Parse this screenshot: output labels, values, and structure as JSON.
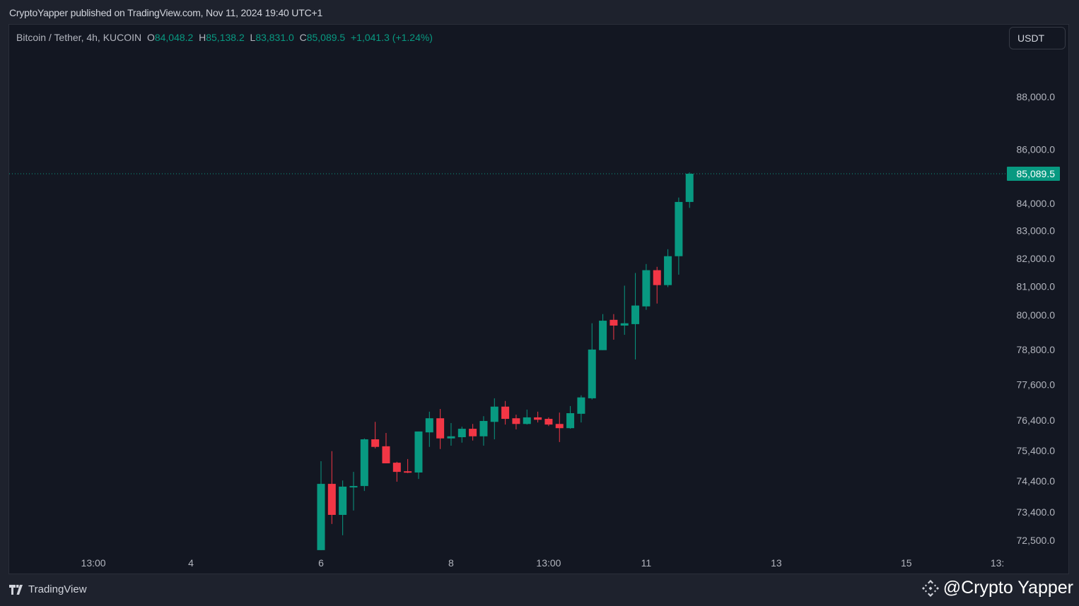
{
  "header": {
    "published": "CryptoYapper published on TradingView.com, Nov 11, 2024 19:40 UTC+1"
  },
  "legend": {
    "symbol": "Bitcoin / Tether, 4h, KUCOIN",
    "o_label": "O",
    "o": "84,048.2",
    "h_label": "H",
    "h": "85,138.2",
    "l_label": "L",
    "l": "83,831.0",
    "c_label": "C",
    "c": "85,089.5",
    "change": "+1,041.3 (+1.24%)"
  },
  "currency_button": "USDT",
  "footer": {
    "brand": "TradingView",
    "watermark": "@Crypto Yapper"
  },
  "colors": {
    "up": "#089981",
    "down": "#f23645",
    "background": "#131722",
    "axis_text": "#b2b5be"
  },
  "chart_data": {
    "type": "candlestick",
    "title": "Bitcoin / Tether, 4h, KUCOIN",
    "scale": "log",
    "ylim": [
      72000,
      89500
    ],
    "last_price": 85089.5,
    "last_price_label": "85,089.5",
    "y_ticks": [
      {
        "value": 88000,
        "label": "88,000.0"
      },
      {
        "value": 86000,
        "label": "86,000.0"
      },
      {
        "value": 84000,
        "label": "84,000.0"
      },
      {
        "value": 83000,
        "label": "83,000.0"
      },
      {
        "value": 82000,
        "label": "82,000.0"
      },
      {
        "value": 81000,
        "label": "81,000.0"
      },
      {
        "value": 80000,
        "label": "80,000.0"
      },
      {
        "value": 78800,
        "label": "78,800.0"
      },
      {
        "value": 77600,
        "label": "77,600.0"
      },
      {
        "value": 76400,
        "label": "76,400.0"
      },
      {
        "value": 75400,
        "label": "75,400.0"
      },
      {
        "value": 74400,
        "label": "74,400.0"
      },
      {
        "value": 73400,
        "label": "73,400.0"
      },
      {
        "value": 72500,
        "label": "72,500.0"
      }
    ],
    "x_ticks": [
      {
        "bar": -21,
        "label": "13:00"
      },
      {
        "bar": -12,
        "label": "4"
      },
      {
        "bar": 0,
        "label": "6"
      },
      {
        "bar": 12,
        "label": "8"
      },
      {
        "bar": 21,
        "label": "13:00"
      },
      {
        "bar": 30,
        "label": "11"
      },
      {
        "bar": 42,
        "label": "13"
      },
      {
        "bar": 54,
        "label": "15"
      },
      {
        "bar": 62.4,
        "label": "13:"
      }
    ],
    "candles": [
      [
        72190,
        75050,
        72190,
        74310
      ],
      [
        74310,
        75380,
        73020,
        73310
      ],
      [
        73310,
        74420,
        72660,
        74220
      ],
      [
        74200,
        74700,
        73450,
        74240
      ],
      [
        74240,
        75800,
        74080,
        75770
      ],
      [
        75770,
        76350,
        75470,
        75520
      ],
      [
        75540,
        75980,
        74980,
        74980
      ],
      [
        75000,
        75030,
        74380,
        74700
      ],
      [
        74720,
        75120,
        74660,
        74700
      ],
      [
        74680,
        76030,
        74470,
        76030
      ],
      [
        76000,
        76690,
        75520,
        76470
      ],
      [
        76470,
        76780,
        75450,
        75800
      ],
      [
        75800,
        76310,
        75560,
        75870
      ],
      [
        75840,
        76190,
        75660,
        76120
      ],
      [
        76120,
        76280,
        75730,
        75870
      ],
      [
        75870,
        76540,
        75560,
        76380
      ],
      [
        76350,
        77140,
        75770,
        76860
      ],
      [
        76860,
        77050,
        76260,
        76450
      ],
      [
        76470,
        76590,
        76100,
        76280
      ],
      [
        76280,
        76760,
        76260,
        76500
      ],
      [
        76500,
        76690,
        76330,
        76420
      ],
      [
        76450,
        76500,
        76210,
        76260
      ],
      [
        76280,
        76660,
        75680,
        76140
      ],
      [
        76140,
        76880,
        76120,
        76640
      ],
      [
        76620,
        77240,
        76330,
        77170
      ],
      [
        77140,
        79710,
        77100,
        78800
      ],
      [
        78780,
        80030,
        78780,
        79800
      ],
      [
        79830,
        80030,
        79140,
        79630
      ],
      [
        79630,
        81030,
        79310,
        79710
      ],
      [
        79680,
        81480,
        78460,
        80330
      ],
      [
        80300,
        81800,
        80180,
        81580
      ],
      [
        81580,
        81700,
        80400,
        81050
      ],
      [
        81050,
        82330,
        80980,
        82080
      ],
      [
        82080,
        84210,
        81420,
        84048.2
      ],
      [
        84048.2,
        85138.2,
        83831.0,
        85089.5
      ]
    ],
    "candle_format": [
      "open",
      "high",
      "low",
      "close"
    ]
  }
}
